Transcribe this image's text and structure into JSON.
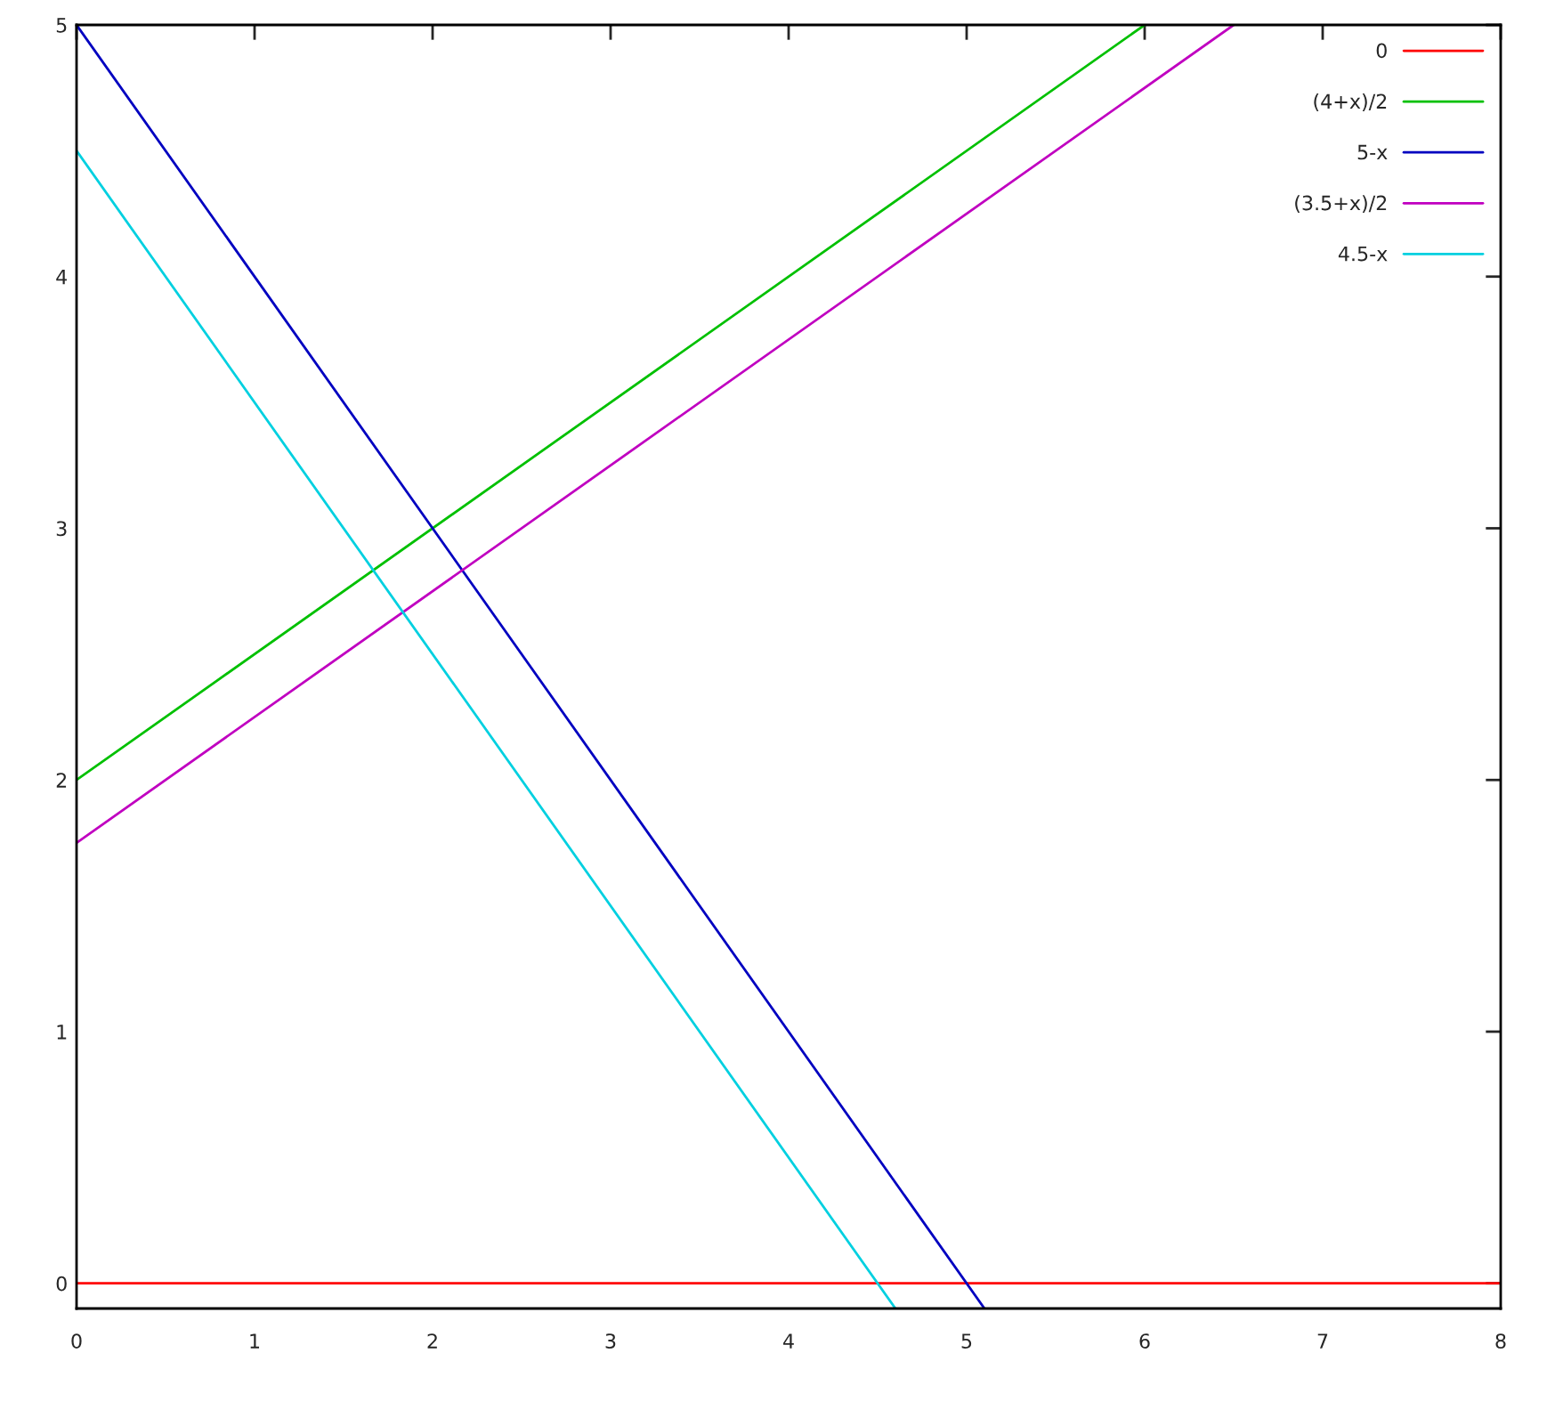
{
  "chart_data": {
    "type": "line",
    "series": [
      {
        "name": "0",
        "color": "#ff0000",
        "x": [
          0,
          8
        ],
        "values": [
          0,
          0
        ]
      },
      {
        "name": "(4+x)/2",
        "color": "#00c000",
        "x": [
          0,
          6
        ],
        "values": [
          2,
          5
        ]
      },
      {
        "name": "5-x",
        "color": "#0000c0",
        "x": [
          0,
          5.1
        ],
        "values": [
          5,
          -0.1
        ]
      },
      {
        "name": "(3.5+x)/2",
        "color": "#c000c0",
        "x": [
          0,
          6.5
        ],
        "values": [
          1.75,
          5
        ]
      },
      {
        "name": "4.5-x",
        "color": "#00d0e0",
        "x": [
          0,
          4.6
        ],
        "values": [
          4.5,
          -0.1
        ]
      }
    ],
    "xlim": [
      0,
      8
    ],
    "ylim": [
      -0.1,
      5
    ],
    "xticks": [
      0,
      1,
      2,
      3,
      4,
      5,
      6,
      7,
      8
    ],
    "yticks": [
      0,
      1,
      2,
      3,
      4,
      5
    ],
    "grid": false,
    "legend": "top right",
    "marker": "none",
    "line_style": "solid"
  }
}
